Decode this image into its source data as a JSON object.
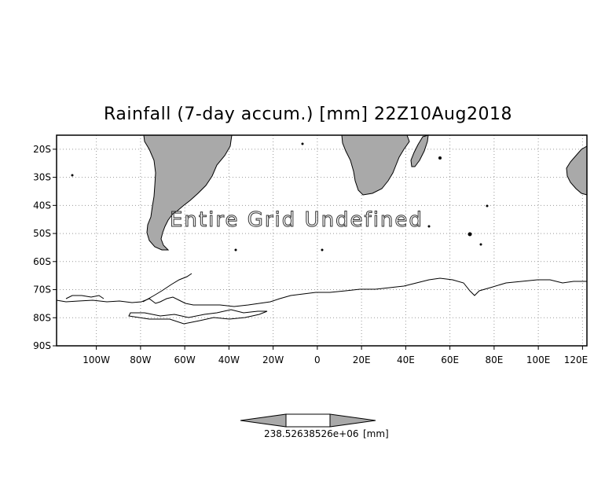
{
  "title": "Rainfall (7-day accum.) [mm] 22Z10Aug2018",
  "overlay_message": "Entire Grid Undefined",
  "map": {
    "lat_range": [
      -90,
      -15
    ],
    "lon_range": [
      -118,
      122
    ],
    "lat_ticks": [
      {
        "value": -20,
        "label": "20S"
      },
      {
        "value": -30,
        "label": "30S"
      },
      {
        "value": -40,
        "label": "40S"
      },
      {
        "value": -50,
        "label": "50S"
      },
      {
        "value": -60,
        "label": "60S"
      },
      {
        "value": -70,
        "label": "70S"
      },
      {
        "value": -80,
        "label": "80S"
      },
      {
        "value": -90,
        "label": "90S"
      }
    ],
    "lon_ticks": [
      {
        "value": -100,
        "label": "100W"
      },
      {
        "value": -80,
        "label": "80W"
      },
      {
        "value": -60,
        "label": "60W"
      },
      {
        "value": -40,
        "label": "40W"
      },
      {
        "value": -20,
        "label": "20W"
      },
      {
        "value": 0,
        "label": "0"
      },
      {
        "value": 20,
        "label": "20E"
      },
      {
        "value": 40,
        "label": "40E"
      },
      {
        "value": 60,
        "label": "60E"
      },
      {
        "value": 80,
        "label": "80E"
      },
      {
        "value": 100,
        "label": "100E"
      },
      {
        "value": 120,
        "label": "120E"
      }
    ],
    "grid": "dotted",
    "land_color": "#a9a9a9"
  },
  "colorbar": {
    "value_label": "238.52638526e+06",
    "unit_label": "[mm]",
    "fill_color": "#a9a9a9"
  }
}
